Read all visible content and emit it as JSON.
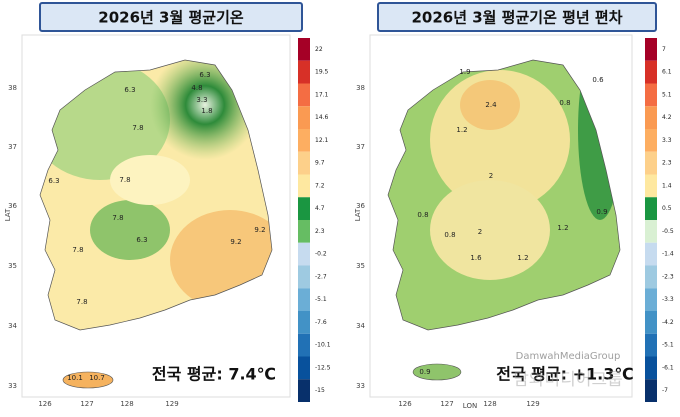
{
  "panels": [
    {
      "title": "2026년 3월 평균기온",
      "average": "전국 평균: 7.4℃",
      "y_axis_label": "LAT",
      "lat_ticks": [
        "38",
        "37",
        "36",
        "35",
        "34",
        "33"
      ],
      "lon_ticks": [
        "126",
        "127",
        "128",
        "129"
      ],
      "colorbar": {
        "labels": [
          "22",
          "19.5",
          "17.1",
          "14.6",
          "12.1",
          "9.7",
          "7.2",
          "4.7",
          "2.3",
          "-0.2",
          "-2.7",
          "-5.1",
          "-7.6",
          "-10.1",
          "-12.5",
          "-15"
        ],
        "colors": [
          "#a50026",
          "#d73027",
          "#f46d43",
          "#fa9a52",
          "#fdae61",
          "#fdd08a",
          "#fee8a0",
          "#1a9641",
          "#66bd63",
          "#c6dbef",
          "#9ecae1",
          "#6baed6",
          "#4292c6",
          "#2171b5",
          "#08519c",
          "#08306b"
        ]
      },
      "contour_labels": [
        "6.3",
        "4.8",
        "3.3",
        "1.8",
        "6.3",
        "7.8",
        "7.8",
        "6.3",
        "7.8",
        "6.3",
        "9.2",
        "9.2",
        "7.8",
        "7.8",
        "10.1",
        "10.7"
      ]
    },
    {
      "title": "2026년 3월 평균기온 평년 편차",
      "average": "전국 평균: +1.3℃",
      "y_axis_label": "LAT",
      "x_axis_label": "LON",
      "lat_ticks": [
        "38",
        "37",
        "36",
        "35",
        "34",
        "33"
      ],
      "lon_ticks": [
        "126",
        "127",
        "128",
        "129"
      ],
      "colorbar": {
        "labels": [
          "7",
          "6.1",
          "5.1",
          "4.2",
          "3.3",
          "2.3",
          "1.4",
          "0.5",
          "-0.5",
          "-1.4",
          "-2.3",
          "-3.3",
          "-4.2",
          "-5.1",
          "-6.1",
          "-7"
        ],
        "colors": [
          "#a50026",
          "#d73027",
          "#f46d43",
          "#fa9a52",
          "#fdae61",
          "#fdd08a",
          "#fee8a0",
          "#1a9641",
          "#d9f0d3",
          "#c6dbef",
          "#9ecae1",
          "#6baed6",
          "#4292c6",
          "#2171b5",
          "#08519c",
          "#08306b"
        ]
      },
      "contour_labels": [
        "1.9",
        "2.4",
        "1.2",
        "0.6",
        "0.8",
        "2",
        "0.9",
        "0.8",
        "0.8",
        "2",
        "1.2",
        "1.6",
        "1.2",
        "0.9"
      ]
    }
  ],
  "watermark": {
    "latin": "DamwahMediaGroup",
    "korean": "담와미디어그룹"
  }
}
